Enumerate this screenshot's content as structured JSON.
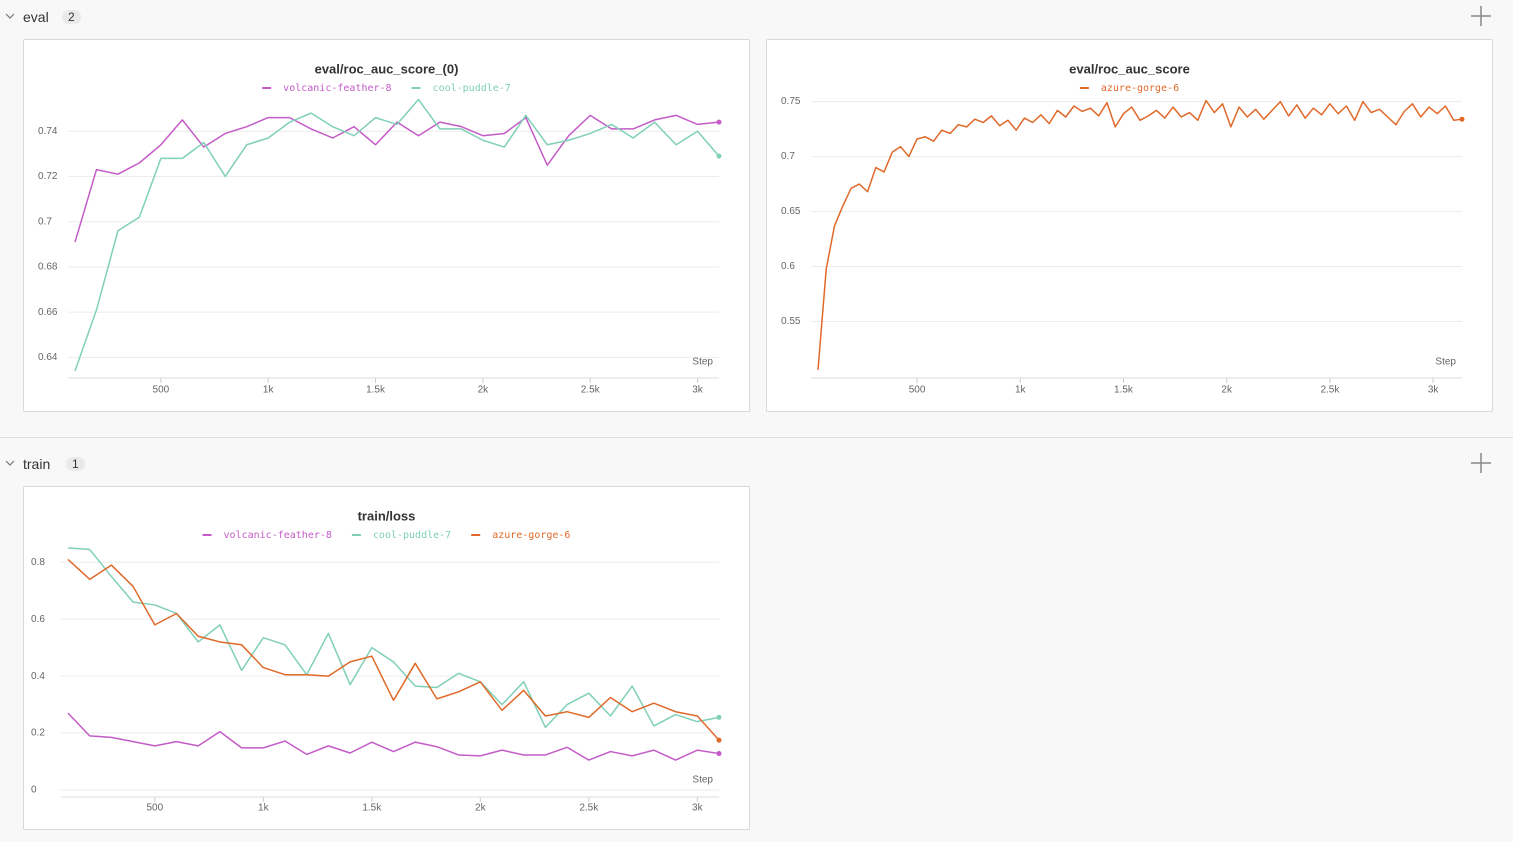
{
  "sections": [
    {
      "name": "eval",
      "count": 2
    },
    {
      "name": "train",
      "count": 1
    }
  ],
  "chart_data": [
    {
      "type": "line",
      "title": "eval/roc_auc_score_(0)",
      "xlabel": "Step",
      "x": [
        100,
        200,
        300,
        400,
        500,
        600,
        700,
        800,
        900,
        1000,
        1100,
        1200,
        1300,
        1400,
        1500,
        1600,
        1700,
        1800,
        1900,
        2000,
        2100,
        2200,
        2300,
        2400,
        2500,
        2600,
        2700,
        2800,
        2900,
        3000,
        3100
      ],
      "series": [
        {
          "name": "volcanic-feather-8",
          "color": "#c45bc8",
          "values": [
            0.691,
            0.723,
            0.721,
            0.726,
            0.734,
            0.745,
            0.733,
            0.739,
            0.742,
            0.746,
            0.746,
            0.741,
            0.737,
            0.742,
            0.734,
            0.744,
            0.738,
            0.744,
            0.742,
            0.738,
            0.739,
            0.746,
            0.725,
            0.738,
            0.747,
            0.741,
            0.741,
            0.745,
            0.747,
            0.743,
            0.744
          ]
        },
        {
          "name": "cool-puddle-7",
          "color": "#80cfb9",
          "values": [
            0.634,
            0.661,
            0.696,
            0.702,
            0.728,
            0.728,
            0.735,
            0.72,
            0.734,
            0.737,
            0.744,
            0.748,
            0.742,
            0.738,
            0.746,
            0.743,
            0.754,
            0.741,
            0.741,
            0.736,
            0.733,
            0.747,
            0.734,
            0.736,
            0.739,
            0.743,
            0.737,
            0.744,
            0.734,
            0.74,
            0.729
          ]
        }
      ],
      "xlim": [
        100,
        3100
      ],
      "ylim": [
        0.634,
        0.756
      ],
      "xticks": [
        500,
        {
          "value": 1000,
          "label": "1k"
        },
        {
          "value": 1500,
          "label": "1.5k"
        },
        {
          "value": 2000,
          "label": "2k"
        },
        {
          "value": 2500,
          "label": "2.5k"
        },
        {
          "value": 3000,
          "label": "3k"
        }
      ],
      "yticks": [
        0.64,
        0.66,
        0.68,
        0.7,
        0.72,
        0.74
      ],
      "grid": true
    },
    {
      "type": "line",
      "title": "eval/roc_auc_score",
      "xlabel": "Step",
      "x": [
        20,
        60,
        100,
        140,
        180,
        220,
        260,
        300,
        340,
        380,
        420,
        460,
        500,
        540,
        580,
        620,
        660,
        700,
        740,
        780,
        820,
        860,
        900,
        940,
        980,
        1020,
        1060,
        1100,
        1140,
        1180,
        1220,
        1260,
        1300,
        1340,
        1380,
        1420,
        1460,
        1500,
        1540,
        1580,
        1620,
        1660,
        1700,
        1740,
        1780,
        1820,
        1860,
        1900,
        1940,
        1980,
        2020,
        2060,
        2100,
        2140,
        2180,
        2220,
        2260,
        2300,
        2340,
        2380,
        2420,
        2460,
        2500,
        2540,
        2580,
        2620,
        2660,
        2700,
        2740,
        2780,
        2820,
        2860,
        2900,
        2940,
        2980,
        3020,
        3060,
        3100,
        3140
      ],
      "series": [
        {
          "name": "azure-gorge-6",
          "color": "#e0692a",
          "values": [
            0.506,
            0.598,
            0.637,
            0.655,
            0.671,
            0.675,
            0.668,
            0.69,
            0.686,
            0.704,
            0.709,
            0.7,
            0.716,
            0.718,
            0.714,
            0.724,
            0.721,
            0.729,
            0.727,
            0.734,
            0.731,
            0.737,
            0.728,
            0.733,
            0.724,
            0.735,
            0.731,
            0.738,
            0.73,
            0.742,
            0.736,
            0.746,
            0.741,
            0.744,
            0.737,
            0.749,
            0.727,
            0.739,
            0.745,
            0.733,
            0.737,
            0.742,
            0.735,
            0.745,
            0.736,
            0.74,
            0.733,
            0.751,
            0.74,
            0.748,
            0.727,
            0.745,
            0.736,
            0.743,
            0.734,
            0.742,
            0.75,
            0.737,
            0.747,
            0.735,
            0.744,
            0.738,
            0.748,
            0.739,
            0.746,
            0.733,
            0.75,
            0.74,
            0.743,
            0.736,
            0.729,
            0.741,
            0.748,
            0.736,
            0.745,
            0.739,
            0.746,
            0.733,
            0.734
          ]
        }
      ],
      "xlim": [
        20,
        3140
      ],
      "ylim": [
        0.505,
        0.756
      ],
      "xticks": [
        500,
        {
          "value": 1000,
          "label": "1k"
        },
        {
          "value": 1500,
          "label": "1.5k"
        },
        {
          "value": 2000,
          "label": "2k"
        },
        {
          "value": 2500,
          "label": "2.5k"
        },
        {
          "value": 3000,
          "label": "3k"
        }
      ],
      "yticks": [
        0.55,
        0.6,
        0.65,
        0.7,
        0.75
      ],
      "grid": true
    },
    {
      "type": "line",
      "title": "train/loss",
      "xlabel": "Step",
      "x": [
        100,
        200,
        300,
        400,
        500,
        600,
        700,
        800,
        900,
        1000,
        1100,
        1200,
        1300,
        1400,
        1500,
        1600,
        1700,
        1800,
        1900,
        2000,
        2100,
        2200,
        2300,
        2400,
        2500,
        2600,
        2700,
        2800,
        2900,
        3000,
        3100
      ],
      "series": [
        {
          "name": "volcanic-feather-8",
          "color": "#c45bc8",
          "values": [
            0.27,
            0.19,
            0.185,
            0.17,
            0.155,
            0.17,
            0.155,
            0.205,
            0.148,
            0.148,
            0.172,
            0.125,
            0.155,
            0.13,
            0.168,
            0.135,
            0.168,
            0.152,
            0.123,
            0.12,
            0.14,
            0.123,
            0.123,
            0.15,
            0.105,
            0.135,
            0.12,
            0.14,
            0.105,
            0.14,
            0.128
          ]
        },
        {
          "name": "cool-puddle-7",
          "color": "#80cfb9",
          "values": [
            0.85,
            0.845,
            0.75,
            0.66,
            0.65,
            0.62,
            0.52,
            0.58,
            0.42,
            0.535,
            0.51,
            0.405,
            0.55,
            0.37,
            0.5,
            0.45,
            0.365,
            0.36,
            0.41,
            0.38,
            0.3,
            0.38,
            0.22,
            0.3,
            0.34,
            0.26,
            0.365,
            0.225,
            0.265,
            0.24,
            0.255
          ]
        },
        {
          "name": "azure-gorge-6",
          "color": "#e0692a",
          "values": [
            0.81,
            0.74,
            0.79,
            0.715,
            0.58,
            0.62,
            0.54,
            0.52,
            0.51,
            0.43,
            0.405,
            0.405,
            0.4,
            0.45,
            0.47,
            0.315,
            0.445,
            0.32,
            0.345,
            0.38,
            0.28,
            0.35,
            0.26,
            0.275,
            0.255,
            0.325,
            0.275,
            0.305,
            0.275,
            0.26,
            0.175
          ]
        }
      ],
      "xlim": [
        100,
        3100
      ],
      "ylim": [
        0,
        0.85
      ],
      "xticks": [
        500,
        {
          "value": 1000,
          "label": "1k"
        },
        {
          "value": 1500,
          "label": "1.5k"
        },
        {
          "value": 2000,
          "label": "2k"
        },
        {
          "value": 2500,
          "label": "2.5k"
        },
        {
          "value": 3000,
          "label": "3k"
        }
      ],
      "yticks": [
        0,
        0.2,
        0.4,
        0.6,
        0.8
      ],
      "grid": true
    }
  ]
}
